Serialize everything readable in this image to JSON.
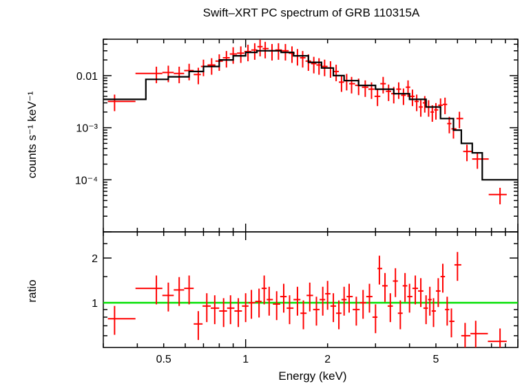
{
  "chart_data": [
    {
      "type": "scatter",
      "title": "Swift–XRT PC spectrum of GRB 110315A",
      "ylabel": "counts s⁻¹ keV⁻¹",
      "xlabel": "",
      "x_scale": "log",
      "y_scale": "log",
      "xlim": [
        0.3,
        10
      ],
      "ylim": [
        1e-05,
        0.05
      ],
      "y_ticks": [
        {
          "value": 0.01,
          "label": "0.01"
        },
        {
          "value": 0.001,
          "label": "10⁻³"
        },
        {
          "value": 0.0001,
          "label": "10⁻⁴"
        }
      ],
      "series": [
        {
          "kind": "data",
          "color": "#ff0000",
          "points": [
            [
              0.33,
              0.0032
            ],
            [
              0.47,
              0.011
            ],
            [
              0.52,
              0.0115
            ],
            [
              0.57,
              0.011
            ],
            [
              0.62,
              0.0125
            ],
            [
              0.67,
              0.0105
            ],
            [
              0.7,
              0.015
            ],
            [
              0.75,
              0.016
            ],
            [
              0.8,
              0.019
            ],
            [
              0.85,
              0.022
            ],
            [
              0.9,
              0.026
            ],
            [
              0.96,
              0.027
            ],
            [
              1.02,
              0.029
            ],
            [
              1.08,
              0.031
            ],
            [
              1.13,
              0.036
            ],
            [
              1.18,
              0.033
            ],
            [
              1.25,
              0.03
            ],
            [
              1.32,
              0.031
            ],
            [
              1.4,
              0.03
            ],
            [
              1.48,
              0.027
            ],
            [
              1.55,
              0.024
            ],
            [
              1.62,
              0.022
            ],
            [
              1.7,
              0.019
            ],
            [
              1.78,
              0.017
            ],
            [
              1.86,
              0.016
            ],
            [
              1.95,
              0.015
            ],
            [
              2.05,
              0.014
            ],
            [
              2.15,
              0.012
            ],
            [
              2.25,
              0.0075
            ],
            [
              2.35,
              0.008
            ],
            [
              2.45,
              0.007
            ],
            [
              2.6,
              0.0065
            ],
            [
              2.75,
              0.006
            ],
            [
              2.9,
              0.0055
            ],
            [
              3.05,
              0.004
            ],
            [
              3.2,
              0.007
            ],
            [
              3.35,
              0.005
            ],
            [
              3.5,
              0.0045
            ],
            [
              3.65,
              0.0055
            ],
            [
              3.8,
              0.0042
            ],
            [
              3.95,
              0.006
            ],
            [
              4.1,
              0.004
            ],
            [
              4.25,
              0.0032
            ],
            [
              4.4,
              0.0025
            ],
            [
              4.55,
              0.003
            ],
            [
              4.7,
              0.0025
            ],
            [
              4.85,
              0.002
            ],
            [
              5.0,
              0.0022
            ],
            [
              5.2,
              0.0027
            ],
            [
              5.4,
              0.0028
            ],
            [
              5.6,
              0.0012
            ],
            [
              5.8,
              0.00095
            ],
            [
              6.1,
              0.0015
            ],
            [
              6.5,
              0.00035
            ],
            [
              7.1,
              0.00025
            ],
            [
              8.6,
              5.2e-05
            ]
          ]
        },
        {
          "kind": "model",
          "color": "#000000",
          "points": [
            [
              0.3,
              0.0035
            ],
            [
              0.43,
              0.0035
            ],
            [
              0.43,
              0.0085
            ],
            [
              0.52,
              0.0085
            ],
            [
              0.52,
              0.0095
            ],
            [
              0.62,
              0.0095
            ],
            [
              0.62,
              0.012
            ],
            [
              0.7,
              0.012
            ],
            [
              0.7,
              0.015
            ],
            [
              0.8,
              0.015
            ],
            [
              0.8,
              0.02
            ],
            [
              0.9,
              0.02
            ],
            [
              0.9,
              0.024
            ],
            [
              1.0,
              0.024
            ],
            [
              1.0,
              0.028
            ],
            [
              1.1,
              0.028
            ],
            [
              1.1,
              0.03
            ],
            [
              1.35,
              0.03
            ],
            [
              1.35,
              0.028
            ],
            [
              1.5,
              0.028
            ],
            [
              1.5,
              0.024
            ],
            [
              1.7,
              0.024
            ],
            [
              1.7,
              0.018
            ],
            [
              1.9,
              0.018
            ],
            [
              1.9,
              0.014
            ],
            [
              2.1,
              0.014
            ],
            [
              2.1,
              0.01
            ],
            [
              2.3,
              0.01
            ],
            [
              2.3,
              0.008
            ],
            [
              2.6,
              0.008
            ],
            [
              2.6,
              0.0065
            ],
            [
              3.0,
              0.0065
            ],
            [
              3.0,
              0.0055
            ],
            [
              3.5,
              0.0055
            ],
            [
              3.5,
              0.0045
            ],
            [
              4.0,
              0.0045
            ],
            [
              4.0,
              0.0035
            ],
            [
              4.6,
              0.0035
            ],
            [
              4.6,
              0.0025
            ],
            [
              5.2,
              0.0025
            ],
            [
              5.2,
              0.0015
            ],
            [
              5.8,
              0.0015
            ],
            [
              5.8,
              0.0009
            ],
            [
              6.2,
              0.0009
            ],
            [
              6.2,
              0.0005
            ],
            [
              6.8,
              0.0005
            ],
            [
              6.8,
              0.00033
            ],
            [
              7.4,
              0.00033
            ],
            [
              7.4,
              0.0001
            ],
            [
              10.0,
              0.0001
            ]
          ]
        }
      ]
    },
    {
      "type": "scatter",
      "title": "",
      "ylabel": "ratio",
      "xlabel": "Energy (keV)",
      "x_scale": "log",
      "y_scale": "log",
      "xlim": [
        0.3,
        10
      ],
      "ylim": [
        0.5,
        3.0
      ],
      "x_ticks": [
        {
          "value": 0.5,
          "label": "0.5"
        },
        {
          "value": 1,
          "label": "1"
        },
        {
          "value": 2,
          "label": "2"
        },
        {
          "value": 5,
          "label": "5"
        }
      ],
      "y_ticks": [
        {
          "value": 1,
          "label": "1"
        },
        {
          "value": 2,
          "label": "2"
        }
      ],
      "reference_line": {
        "value": 1.0,
        "color": "#00e000"
      },
      "series": [
        {
          "kind": "data",
          "color": "#ff0000",
          "points": [
            [
              0.33,
              0.78
            ],
            [
              0.47,
              1.25
            ],
            [
              0.52,
              1.12
            ],
            [
              0.57,
              1.22
            ],
            [
              0.62,
              1.25
            ],
            [
              0.67,
              0.72
            ],
            [
              0.72,
              0.95
            ],
            [
              0.77,
              0.92
            ],
            [
              0.83,
              0.88
            ],
            [
              0.88,
              0.92
            ],
            [
              0.94,
              0.88
            ],
            [
              1.0,
              0.95
            ],
            [
              1.05,
              1.0
            ],
            [
              1.12,
              1.02
            ],
            [
              1.17,
              1.25
            ],
            [
              1.22,
              1.05
            ],
            [
              1.3,
              0.98
            ],
            [
              1.38,
              1.1
            ],
            [
              1.45,
              0.92
            ],
            [
              1.55,
              1.05
            ],
            [
              1.63,
              0.85
            ],
            [
              1.72,
              1.12
            ],
            [
              1.82,
              0.9
            ],
            [
              1.92,
              1.05
            ],
            [
              2.0,
              1.15
            ],
            [
              2.1,
              0.95
            ],
            [
              2.2,
              0.85
            ],
            [
              2.3,
              1.05
            ],
            [
              2.4,
              1.1
            ],
            [
              2.55,
              0.9
            ],
            [
              2.7,
              1.0
            ],
            [
              2.85,
              1.1
            ],
            [
              3.0,
              0.8
            ],
            [
              3.1,
              1.7
            ],
            [
              3.25,
              1.3
            ],
            [
              3.4,
              0.95
            ],
            [
              3.55,
              1.4
            ],
            [
              3.7,
              0.85
            ],
            [
              3.85,
              1.3
            ],
            [
              4.0,
              1.1
            ],
            [
              4.2,
              1.25
            ],
            [
              4.4,
              1.2
            ],
            [
              4.6,
              0.92
            ],
            [
              4.75,
              1.05
            ],
            [
              4.9,
              0.88
            ],
            [
              5.1,
              1.2
            ],
            [
              5.3,
              1.5
            ],
            [
              5.5,
              0.9
            ],
            [
              5.7,
              0.75
            ],
            [
              6.0,
              1.8
            ],
            [
              6.4,
              0.6
            ],
            [
              7.0,
              0.62
            ],
            [
              8.6,
              0.55
            ]
          ]
        }
      ]
    }
  ]
}
